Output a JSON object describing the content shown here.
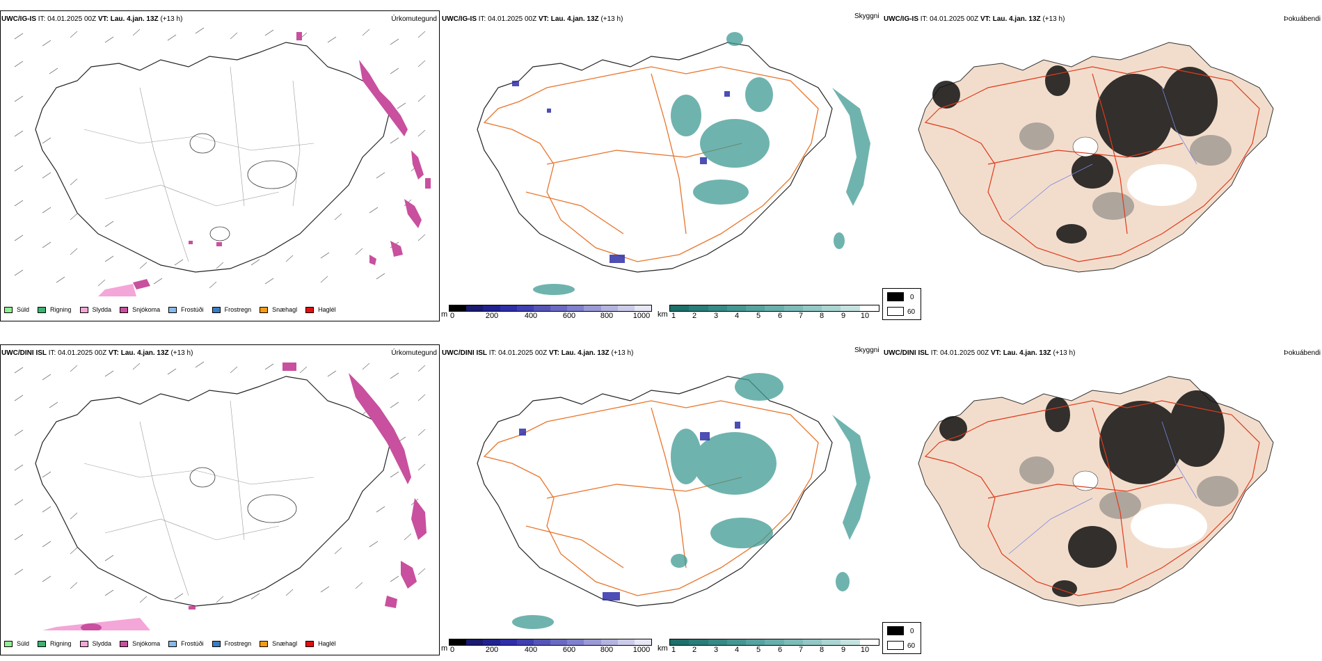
{
  "rows": [
    {
      "model": "UWC/IG-IS",
      "it_label": "IT:",
      "it_value": "04.01.2025 00Z",
      "vt_label": "VT:",
      "vt_value": "Lau. 4.jan. 13Z",
      "lead": "(+13 h)"
    },
    {
      "model": "UWC/DINI ISL",
      "it_label": "IT:",
      "it_value": "04.01.2025 00Z",
      "vt_label": "VT:",
      "vt_value": "Lau. 4.jan. 13Z",
      "lead": "(+13 h)"
    }
  ],
  "panel_titles": {
    "precip": "Úrkomutegund",
    "visibility": "Skyggni",
    "fog": "Þokuábendi"
  },
  "precip_legend": [
    {
      "label": "Súld",
      "color": "#90ee90"
    },
    {
      "label": "Rigning",
      "color": "#3cb371"
    },
    {
      "label": "Slydda",
      "color": "#f4a6d8"
    },
    {
      "label": "Snjókoma",
      "color": "#c8509e"
    },
    {
      "label": "Frostúði",
      "color": "#87b9ec"
    },
    {
      "label": "Frostregn",
      "color": "#3a7cc4"
    },
    {
      "label": "Snæhagl",
      "color": "#f39c12"
    },
    {
      "label": "Haglél",
      "color": "#e01010"
    }
  ],
  "ceiling_scale": {
    "unit": "m",
    "ticks": [
      "0",
      "200",
      "400",
      "600",
      "800",
      "1000"
    ],
    "colors": [
      "#000000",
      "#1a1a6e",
      "#22228f",
      "#2f2fa8",
      "#4040b0",
      "#5555b8",
      "#6a6ac2",
      "#8080cc",
      "#9a9ad6",
      "#b4b4e0",
      "#ccccea",
      "#e6e6f4"
    ]
  },
  "visibility_scale": {
    "unit": "km",
    "ticks": [
      "1",
      "2",
      "3",
      "4",
      "5",
      "6",
      "7",
      "8",
      "9",
      "10"
    ],
    "colors": [
      "#1f6f6a",
      "#2a7d78",
      "#378a85",
      "#469792",
      "#57a39f",
      "#6aafab",
      "#7ebcb8",
      "#94c8c5",
      "#abd5d2",
      "#c4e2e0",
      "#ffffff"
    ]
  },
  "fog_scale": {
    "top_label": "0",
    "bottom_label": "60",
    "top_color": "#000000",
    "bottom_color": "#ffffff"
  },
  "colors": {
    "snow": "#c8509e",
    "sleet": "#f4a6d8",
    "road": "#e8742a",
    "land_fog": "#f2ddcc",
    "ceiling_blue": "#2f2fa8",
    "vis_teal": "#3f9a93"
  }
}
